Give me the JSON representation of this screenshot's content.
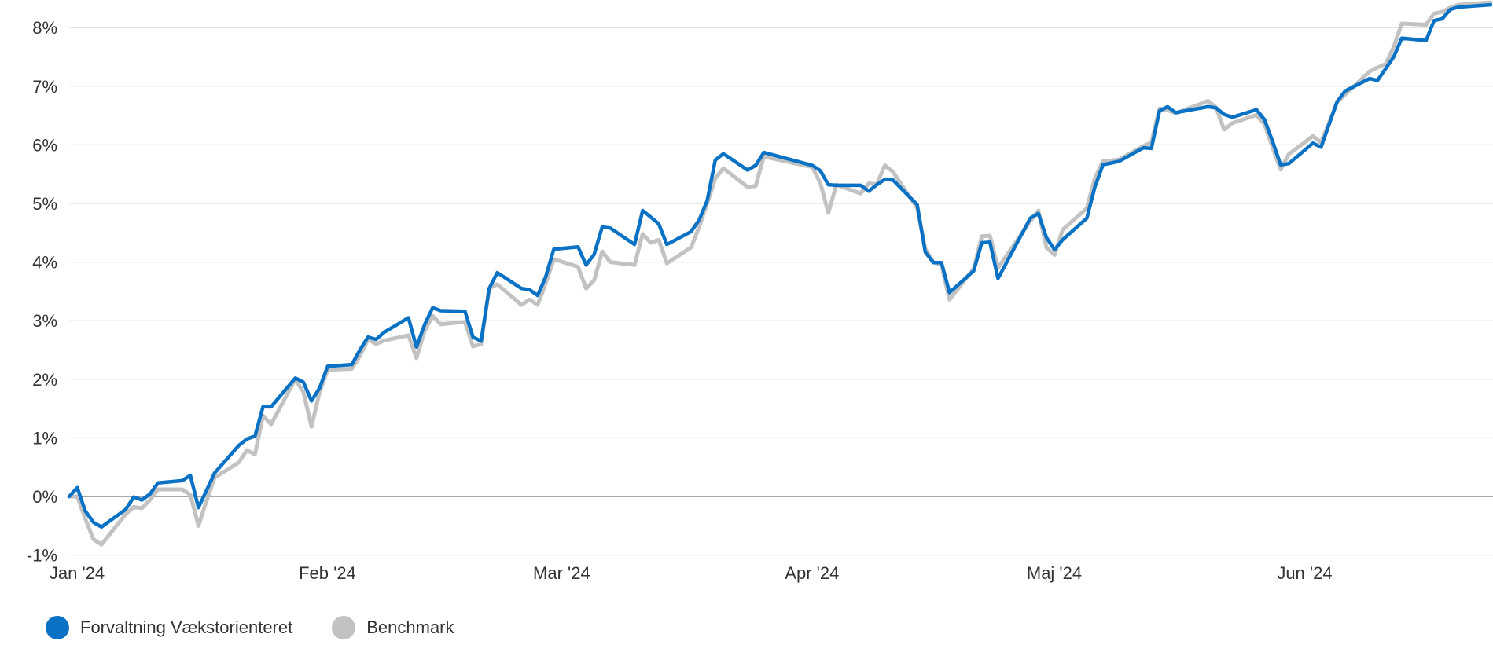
{
  "chart_data": {
    "type": "line",
    "title": "",
    "xlabel": "",
    "ylabel": "",
    "ylim": [
      -1.0,
      8.4
    ],
    "y_ticks": [
      {
        "value": 8,
        "label": "8%"
      },
      {
        "value": 7,
        "label": "7%"
      },
      {
        "value": 6,
        "label": "6%"
      },
      {
        "value": 5,
        "label": "5%"
      },
      {
        "value": 4,
        "label": "4%"
      },
      {
        "value": 3,
        "label": "3%"
      },
      {
        "value": 2,
        "label": "2%"
      },
      {
        "value": 1,
        "label": "1%"
      },
      {
        "value": 0,
        "label": "0%"
      },
      {
        "value": -1,
        "label": "-1%"
      }
    ],
    "x_ticks": [
      {
        "date": "2024-01-01",
        "label": "Jan '24"
      },
      {
        "date": "2024-02-01",
        "label": "Feb '24"
      },
      {
        "date": "2024-03-01",
        "label": "Mar '24"
      },
      {
        "date": "2024-04-01",
        "label": "Apr '24"
      },
      {
        "date": "2024-05-01",
        "label": "Maj '24"
      },
      {
        "date": "2024-06-01",
        "label": "Jun '24"
      }
    ],
    "x_range": [
      "2024-01-01",
      "2024-06-25"
    ],
    "grid": true,
    "legend_position": "bottom-left",
    "x": [
      "2024-01-01",
      "2024-01-02",
      "2024-01-03",
      "2024-01-04",
      "2024-01-05",
      "2024-01-08",
      "2024-01-09",
      "2024-01-10",
      "2024-01-11",
      "2024-01-12",
      "2024-01-15",
      "2024-01-16",
      "2024-01-17",
      "2024-01-18",
      "2024-01-19",
      "2024-01-22",
      "2024-01-23",
      "2024-01-24",
      "2024-01-25",
      "2024-01-26",
      "2024-01-29",
      "2024-01-30",
      "2024-01-31",
      "2024-02-01",
      "2024-02-02",
      "2024-02-05",
      "2024-02-06",
      "2024-02-07",
      "2024-02-08",
      "2024-02-09",
      "2024-02-12",
      "2024-02-13",
      "2024-02-14",
      "2024-02-15",
      "2024-02-16",
      "2024-02-19",
      "2024-02-20",
      "2024-02-21",
      "2024-02-22",
      "2024-02-23",
      "2024-02-26",
      "2024-02-27",
      "2024-02-28",
      "2024-02-29",
      "2024-03-01",
      "2024-03-04",
      "2024-03-05",
      "2024-03-06",
      "2024-03-07",
      "2024-03-08",
      "2024-03-11",
      "2024-03-12",
      "2024-03-13",
      "2024-03-14",
      "2024-03-15",
      "2024-03-18",
      "2024-03-19",
      "2024-03-20",
      "2024-03-21",
      "2024-03-22",
      "2024-03-25",
      "2024-03-26",
      "2024-03-27",
      "2024-04-02",
      "2024-04-03",
      "2024-04-04",
      "2024-04-05",
      "2024-04-08",
      "2024-04-09",
      "2024-04-10",
      "2024-04-11",
      "2024-04-12",
      "2024-04-15",
      "2024-04-16",
      "2024-04-17",
      "2024-04-18",
      "2024-04-19",
      "2024-04-22",
      "2024-04-23",
      "2024-04-24",
      "2024-04-25",
      "2024-04-29",
      "2024-04-30",
      "2024-05-01",
      "2024-05-02",
      "2024-05-03",
      "2024-05-06",
      "2024-05-07",
      "2024-05-08",
      "2024-05-10",
      "2024-05-13",
      "2024-05-14",
      "2024-05-15",
      "2024-05-16",
      "2024-05-17",
      "2024-05-21",
      "2024-05-22",
      "2024-05-23",
      "2024-05-24",
      "2024-05-27",
      "2024-05-28",
      "2024-05-29",
      "2024-05-30",
      "2024-05-31",
      "2024-06-03",
      "2024-06-04",
      "2024-06-06",
      "2024-06-07",
      "2024-06-10",
      "2024-06-11",
      "2024-06-12",
      "2024-06-13",
      "2024-06-14",
      "2024-06-17",
      "2024-06-18",
      "2024-06-19",
      "2024-06-20",
      "2024-06-21",
      "2024-06-24",
      "2024-06-25"
    ],
    "series": [
      {
        "name": "Forvaltning Vækstorienteret",
        "color": "#0a72c4",
        "values": [
          0.0,
          0.15,
          -0.25,
          -0.44,
          -0.52,
          -0.22,
          -0.01,
          -0.06,
          0.04,
          0.23,
          0.27,
          0.36,
          -0.19,
          0.1,
          0.4,
          0.87,
          0.98,
          1.03,
          1.53,
          1.53,
          2.02,
          1.95,
          1.63,
          1.85,
          2.22,
          2.25,
          2.5,
          2.72,
          2.68,
          2.8,
          3.05,
          2.55,
          2.93,
          3.22,
          3.17,
          3.16,
          2.72,
          2.65,
          3.55,
          3.82,
          3.55,
          3.53,
          3.43,
          3.75,
          4.22,
          4.26,
          3.95,
          4.13,
          4.6,
          4.58,
          4.3,
          4.88,
          4.77,
          4.65,
          4.3,
          4.52,
          4.72,
          5.05,
          5.74,
          5.85,
          5.57,
          5.65,
          5.87,
          5.65,
          5.56,
          5.32,
          5.31,
          5.31,
          5.21,
          5.32,
          5.41,
          5.4,
          4.98,
          4.17,
          3.99,
          3.99,
          3.48,
          3.85,
          4.33,
          4.34,
          3.72,
          4.75,
          4.83,
          4.42,
          4.21,
          4.38,
          4.75,
          5.28,
          5.66,
          5.72,
          5.95,
          5.94,
          6.58,
          6.65,
          6.55,
          6.65,
          6.63,
          6.52,
          6.47,
          6.6,
          6.43,
          6.06,
          5.66,
          5.68,
          6.03,
          5.96,
          6.74,
          6.92,
          7.13,
          7.1,
          7.3,
          7.5,
          7.82,
          7.78,
          8.12,
          8.15,
          8.31,
          8.35,
          8.38,
          8.39
        ]
      },
      {
        "name": "Benchmark",
        "color": "#c2c2c2",
        "values": [
          0.0,
          0.0,
          -0.38,
          -0.73,
          -0.82,
          -0.3,
          -0.18,
          -0.2,
          -0.06,
          0.12,
          0.12,
          0.03,
          -0.5,
          -0.08,
          0.32,
          0.58,
          0.79,
          0.72,
          1.38,
          1.23,
          2.0,
          1.78,
          1.19,
          1.78,
          2.16,
          2.18,
          2.4,
          2.68,
          2.6,
          2.66,
          2.75,
          2.36,
          2.82,
          3.08,
          2.94,
          2.98,
          2.56,
          2.6,
          3.55,
          3.62,
          3.27,
          3.36,
          3.27,
          3.64,
          4.05,
          3.92,
          3.55,
          3.69,
          4.18,
          4.0,
          3.95,
          4.48,
          4.33,
          4.38,
          3.98,
          4.25,
          4.6,
          5.0,
          5.43,
          5.6,
          5.28,
          5.3,
          5.8,
          5.62,
          5.35,
          4.84,
          5.32,
          5.17,
          5.34,
          5.33,
          5.65,
          5.54,
          4.92,
          4.23,
          4.0,
          3.95,
          3.36,
          3.89,
          4.44,
          4.45,
          3.9,
          4.7,
          4.88,
          4.25,
          4.12,
          4.55,
          4.92,
          5.43,
          5.72,
          5.75,
          5.98,
          6.04,
          6.62,
          6.59,
          6.54,
          6.75,
          6.64,
          6.26,
          6.37,
          6.51,
          6.35,
          5.96,
          5.58,
          5.84,
          6.15,
          6.04,
          6.73,
          6.86,
          7.25,
          7.32,
          7.38,
          7.67,
          8.07,
          8.05,
          8.24,
          8.27,
          8.34,
          8.39,
          8.42,
          8.43
        ]
      }
    ]
  },
  "colors": {
    "grid": "#dcdcdc",
    "zero_line": "#a8a8a8",
    "text": "#333333"
  }
}
